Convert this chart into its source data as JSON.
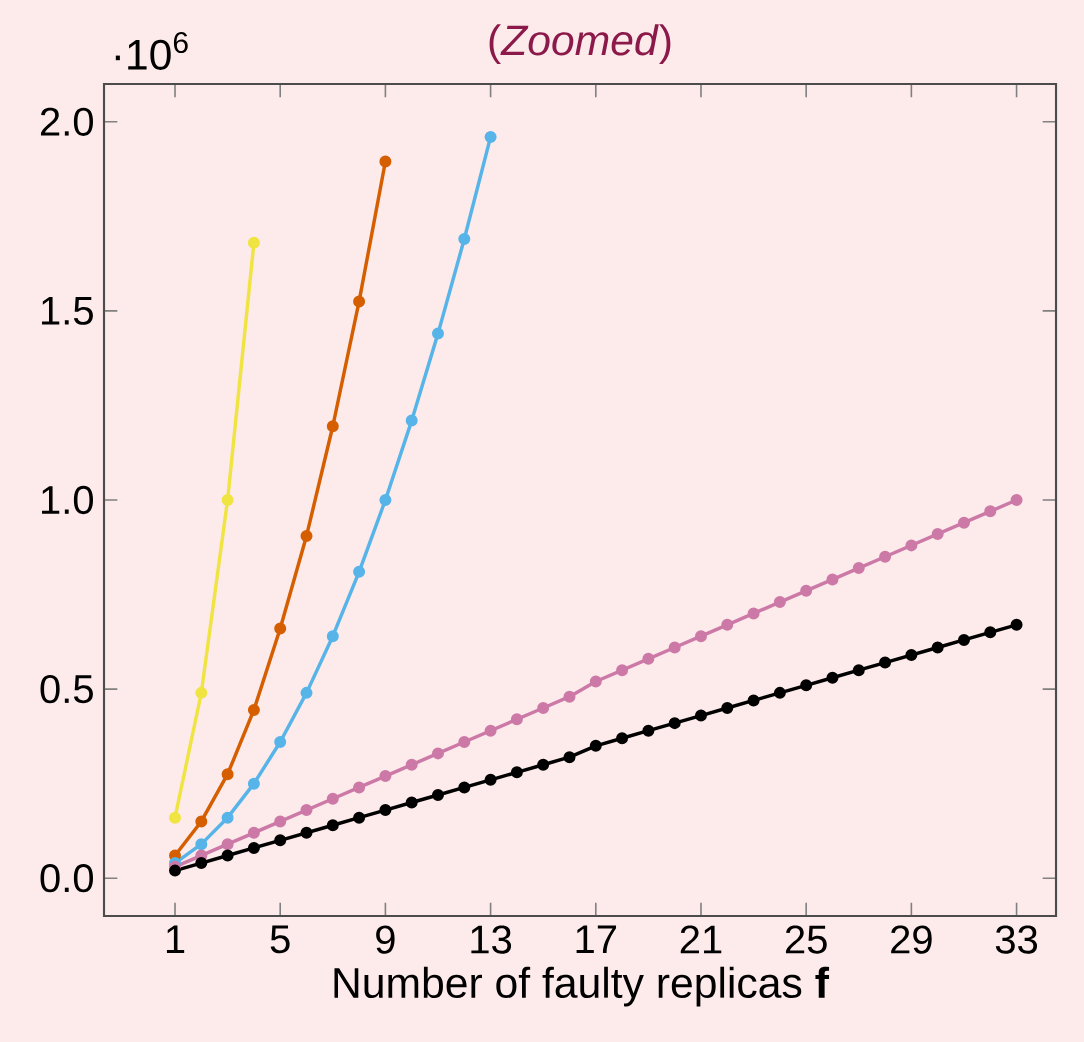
{
  "chart_data": {
    "type": "line",
    "title": "(*Zoomed*)",
    "xlabel": "Number of faulty replicas **f**",
    "annotations": [
      "·10$^{6}$"
    ],
    "xlim": [
      -1.7,
      34.5
    ],
    "ylim": [
      -0.1,
      2.1
    ],
    "xticks": [
      1,
      5,
      9,
      13,
      17,
      21,
      25,
      29,
      33
    ],
    "yticks": [
      {
        "value": 0,
        "label": "0.0"
      },
      {
        "value": 0.5,
        "label": "0.5"
      },
      {
        "value": 1,
        "label": "1.0"
      },
      {
        "value": 1.5,
        "label": "1.5"
      },
      {
        "value": 2,
        "label": "2.0"
      }
    ],
    "grid": false,
    "marker": "circle",
    "line_style": "solid",
    "series": [
      {
        "color": "#f0e442",
        "x": [
          1,
          2,
          3,
          4
        ],
        "values": [
          0.16,
          0.49,
          1.0,
          1.68
        ]
      },
      {
        "color": "#d55e00",
        "x": [
          1,
          2,
          3,
          4,
          5,
          6,
          7,
          8,
          9
        ],
        "values": [
          0.06,
          0.15,
          0.275,
          0.445,
          0.66,
          0.905,
          1.195,
          1.525,
          1.895
        ]
      },
      {
        "color": "#56b4e9",
        "x": [
          1,
          2,
          3,
          4,
          5,
          6,
          7,
          8,
          9,
          10,
          11,
          12,
          13
        ],
        "values": [
          0.04,
          0.09,
          0.16,
          0.25,
          0.36,
          0.49,
          0.64,
          0.81,
          1.0,
          1.21,
          1.44,
          1.69,
          1.96
        ]
      },
      {
        "color": "#cc79a7",
        "x": [
          1,
          2,
          3,
          4,
          5,
          6,
          7,
          8,
          9,
          10,
          11,
          12,
          13,
          14,
          15,
          16,
          17,
          18,
          19,
          20,
          21,
          22,
          23,
          24,
          25,
          26,
          27,
          28,
          29,
          30,
          31,
          32,
          33
        ],
        "values": [
          0.03,
          0.06,
          0.09,
          0.12,
          0.15,
          0.18,
          0.21,
          0.24,
          0.27,
          0.3,
          0.33,
          0.36,
          0.39,
          0.42,
          0.45,
          0.48,
          0.52,
          0.55,
          0.58,
          0.61,
          0.64,
          0.67,
          0.7,
          0.73,
          0.76,
          0.79,
          0.82,
          0.85,
          0.88,
          0.91,
          0.94,
          0.97,
          1.0
        ]
      },
      {
        "color": "#000000",
        "x": [
          1,
          2,
          3,
          4,
          5,
          6,
          7,
          8,
          9,
          10,
          11,
          12,
          13,
          14,
          15,
          16,
          17,
          18,
          19,
          20,
          21,
          22,
          23,
          24,
          25,
          26,
          27,
          28,
          29,
          30,
          31,
          32,
          33
        ],
        "values": [
          0.02,
          0.04,
          0.06,
          0.08,
          0.1,
          0.12,
          0.14,
          0.16,
          0.18,
          0.2,
          0.22,
          0.24,
          0.26,
          0.28,
          0.3,
          0.32,
          0.35,
          0.37,
          0.39,
          0.41,
          0.43,
          0.45,
          0.47,
          0.49,
          0.51,
          0.53,
          0.55,
          0.57,
          0.59,
          0.61,
          0.63,
          0.65,
          0.67
        ]
      }
    ]
  }
}
